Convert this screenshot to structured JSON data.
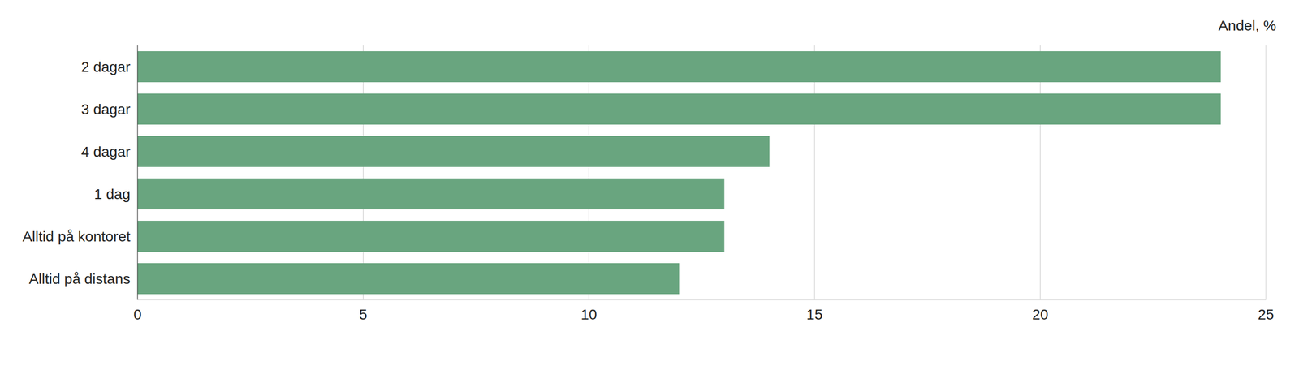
{
  "chart_data": {
    "type": "bar",
    "orientation": "horizontal",
    "x_label": "Andel, %",
    "categories": [
      "2 dagar",
      "3 dagar",
      "4 dagar",
      "1 dag",
      "Alltid på kontoret",
      "Alltid på distans"
    ],
    "values": [
      24,
      24,
      14,
      13,
      13,
      12
    ],
    "color": "#69a57f",
    "xlim": [
      0,
      25
    ],
    "xticks": [
      0,
      5,
      10,
      15,
      20,
      25
    ],
    "grid": true
  }
}
